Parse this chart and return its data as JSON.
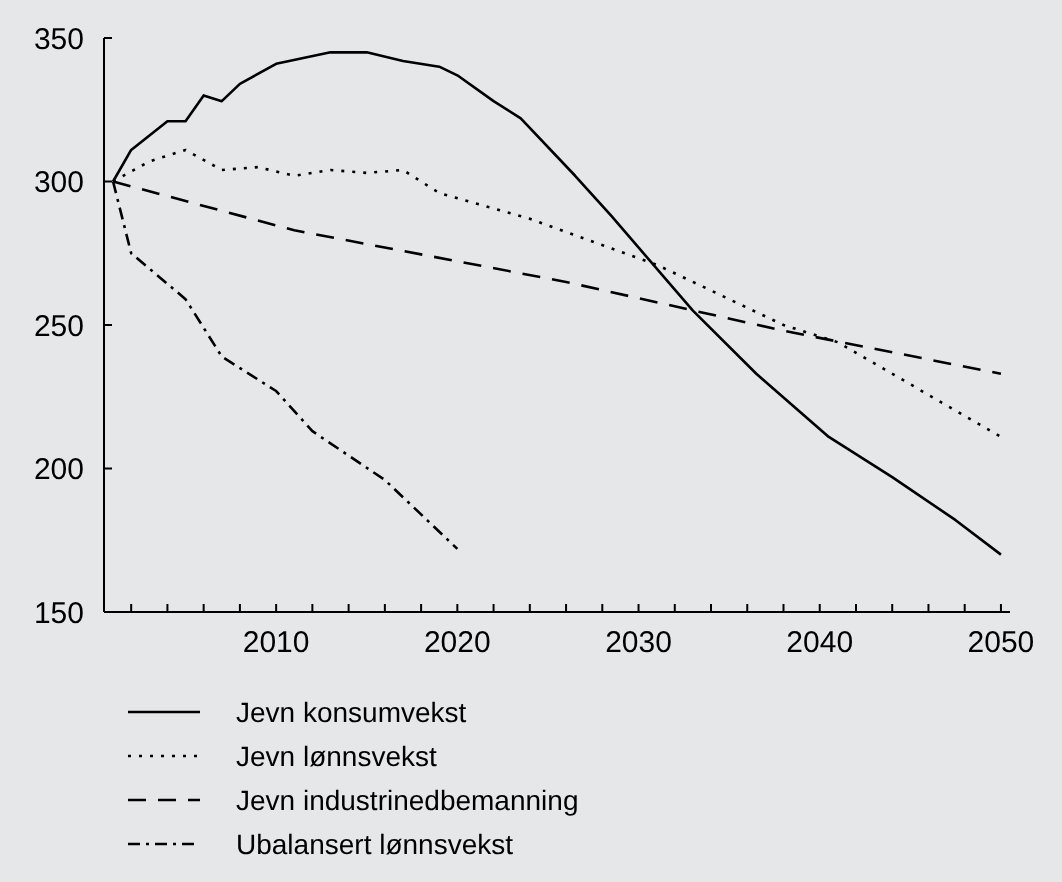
{
  "chart_data": {
    "type": "line",
    "x": [
      2001,
      2002,
      2004,
      2005,
      2006,
      2007,
      2008,
      2010,
      2013,
      2015,
      2017,
      2019,
      2020,
      2022,
      2023.5,
      2026.5,
      2028.5,
      2033,
      2036.5,
      2040.5,
      2044,
      2047.5,
      2050
    ],
    "series": [
      {
        "name": "Jevn konsumvekst",
        "color": "#000000",
        "line_style": "solid",
        "values": [
          300,
          311,
          321,
          321,
          330,
          328,
          334,
          341,
          345,
          345,
          342,
          340,
          337,
          328,
          322,
          302,
          288,
          255,
          233,
          211,
          197,
          182,
          170
        ]
      },
      {
        "name": "Jevn lønnsvekst",
        "color": "#000000",
        "line_style": "dotted",
        "x": [
          2001,
          2003,
          2005,
          2007,
          2009,
          2011,
          2013,
          2015,
          2017,
          2019,
          2024,
          2031,
          2038,
          2041,
          2050
        ],
        "values": [
          300,
          307,
          311,
          304,
          305,
          302,
          304,
          303,
          304,
          296,
          287,
          271,
          250,
          244,
          211
        ]
      },
      {
        "name": "Jevn industrinedbemanning",
        "color": "#000000",
        "line_style": "dashed",
        "x": [
          2001,
          2011,
          2026,
          2038,
          2050
        ],
        "values": [
          300,
          283,
          265,
          248,
          233
        ]
      },
      {
        "name": "Ubalansert lønnsvekst",
        "color": "#000000",
        "line_style": "dashdot",
        "x": [
          2001,
          2002,
          2005,
          2007,
          2010,
          2012,
          2016,
          2017,
          2020
        ],
        "values": [
          300,
          275,
          259,
          239,
          227,
          213,
          196,
          190,
          172
        ]
      }
    ],
    "xlim": [
      2000.5,
      2050.5
    ],
    "xticks": [
      {
        "value": 2002,
        "label": null
      },
      {
        "value": 2004,
        "label": null
      },
      {
        "value": 2006,
        "label": null
      },
      {
        "value": 2008,
        "label": null
      },
      2010,
      {
        "value": 2012,
        "label": null
      },
      {
        "value": 2014,
        "label": null
      },
      {
        "value": 2016,
        "label": null
      },
      {
        "value": 2018,
        "label": null
      },
      2020,
      {
        "value": 2022,
        "label": null
      },
      {
        "value": 2024,
        "label": null
      },
      {
        "value": 2026,
        "label": null
      },
      {
        "value": 2028,
        "label": null
      },
      2030,
      {
        "value": 2032,
        "label": null
      },
      {
        "value": 2034,
        "label": null
      },
      {
        "value": 2036,
        "label": null
      },
      {
        "value": 2038,
        "label": null
      },
      2040,
      {
        "value": 2042,
        "label": null
      },
      {
        "value": 2044,
        "label": null
      },
      {
        "value": 2046,
        "label": null
      },
      {
        "value": 2048,
        "label": null
      },
      2050
    ],
    "ylim": [
      150,
      350
    ],
    "yticks": [
      150,
      200,
      250,
      300,
      350
    ],
    "grid": false,
    "legend": "bottom",
    "marker": "none"
  }
}
